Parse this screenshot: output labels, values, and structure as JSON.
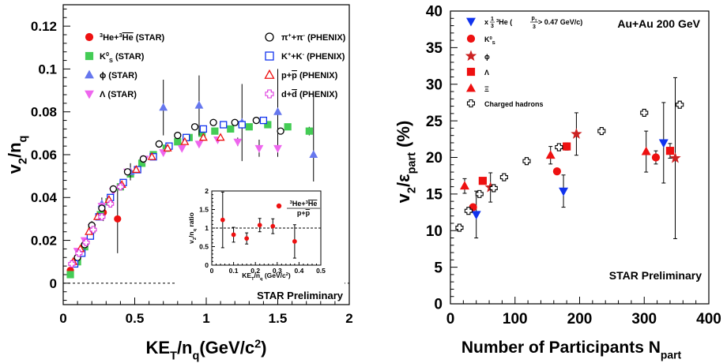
{
  "chart_data": [
    {
      "type": "scatter",
      "xlabel": "KE_T/n_q (GeV/c^2)",
      "xlabel_main": "KE",
      "xlabel_sub": "T",
      "xlabel_rest": "/n",
      "xlabel_sub2": "q",
      "xlabel_unit": "(GeV/c",
      "xlabel_sup": "2",
      "xlabel_close": ")",
      "ylabel": "v_2/n_q",
      "ylabel_main": "v",
      "ylabel_sub": "2",
      "ylabel_rest": "/n",
      "ylabel_sub2": "q",
      "xlim": [
        0,
        2
      ],
      "ylim": [
        -0.01,
        0.13
      ],
      "x_ticks": [
        "0",
        "0.5",
        "1",
        "1.5",
        "2"
      ],
      "y_ticks": [
        "0",
        "0.02",
        "0.04",
        "0.06",
        "0.08",
        "0.1",
        "0.12"
      ],
      "annotation": "STAR Preliminary",
      "legend_placement": "top",
      "series": [
        {
          "name": "3He+3He (STAR)",
          "label_main": "He+",
          "label_pre": "3",
          "label_pre2": "3",
          "label_main2": "He",
          "label_suffix": " (STAR)",
          "color": "#ee1111",
          "marker": "circle",
          "points": [
            [
              0.05,
              0.006,
              0.002
            ],
            [
              0.1,
              0.012,
              0.002
            ],
            [
              0.15,
              0.018,
              0.003
            ],
            [
              0.2,
              0.026,
              0.003
            ],
            [
              0.28,
              0.033,
              0.004
            ],
            [
              0.38,
              0.03,
              0.016
            ]
          ]
        },
        {
          "name": "K0S (STAR)",
          "label": "K",
          "label_sub": "S",
          "label_sup": "0",
          "label_suffix": " (STAR)",
          "color": "#44cc55",
          "marker": "square",
          "points": [
            [
              0.05,
              0.004,
              0
            ],
            [
              0.1,
              0.01,
              0
            ],
            [
              0.15,
              0.017,
              0
            ],
            [
              0.2,
              0.025,
              0
            ],
            [
              0.26,
              0.032,
              0
            ],
            [
              0.32,
              0.038,
              0
            ],
            [
              0.4,
              0.045,
              0
            ],
            [
              0.47,
              0.051,
              0
            ],
            [
              0.55,
              0.056,
              0
            ],
            [
              0.63,
              0.06,
              0
            ],
            [
              0.72,
              0.063,
              0
            ],
            [
              0.8,
              0.066,
              0
            ],
            [
              0.88,
              0.068,
              0
            ],
            [
              0.97,
              0.07,
              0
            ],
            [
              1.06,
              0.071,
              0
            ],
            [
              1.17,
              0.072,
              0
            ],
            [
              1.3,
              0.073,
              0
            ],
            [
              1.43,
              0.074,
              0
            ],
            [
              1.57,
              0.073,
              0
            ],
            [
              1.72,
              0.071,
              0.002
            ]
          ]
        },
        {
          "name": "phi (STAR)",
          "label": "ϕ",
          "label_suffix": " (STAR)",
          "color": "#6677ee",
          "marker": "triangle-up",
          "points": [
            [
              0.27,
              0.037,
              0.003
            ],
            [
              0.47,
              0.052,
              0.004
            ],
            [
              0.7,
              0.082,
              0.013
            ],
            [
              0.95,
              0.083,
              0.014
            ],
            [
              1.25,
              0.075,
              0.018
            ],
            [
              1.5,
              0.08,
              0.02
            ],
            [
              1.75,
              0.06,
              0.028
            ]
          ]
        },
        {
          "name": "Lambda (STAR)",
          "label": "Λ",
          "label_suffix": " (STAR)",
          "color": "#ee66ee",
          "marker": "triangle-down",
          "points": [
            [
              0.1,
              0.015,
              0
            ],
            [
              0.15,
              0.02,
              0
            ],
            [
              0.2,
              0.026,
              0
            ],
            [
              0.27,
              0.036,
              0
            ],
            [
              0.35,
              0.043,
              0
            ],
            [
              0.45,
              0.052,
              0
            ],
            [
              0.57,
              0.058,
              0
            ],
            [
              0.7,
              0.061,
              0
            ],
            [
              0.83,
              0.063,
              0
            ],
            [
              0.95,
              0.065,
              0
            ],
            [
              1.08,
              0.067,
              0
            ],
            [
              1.22,
              0.066,
              0.002
            ],
            [
              1.37,
              0.063,
              0.004
            ],
            [
              1.5,
              0.063,
              0.004
            ]
          ]
        },
        {
          "name": "pi+ + pi- (PHENIX)",
          "label": "π",
          "label_sup": "+",
          "label_mid": "+π",
          "label_sup2": "-",
          "label_suffix": " (PHENIX)",
          "color": "#000000",
          "marker": "open-circle",
          "points": [
            [
              0.1,
              0.012,
              0
            ],
            [
              0.15,
              0.018,
              0
            ],
            [
              0.2,
              0.027,
              0
            ],
            [
              0.27,
              0.035,
              0
            ],
            [
              0.35,
              0.044,
              0
            ],
            [
              0.45,
              0.052,
              0
            ],
            [
              0.56,
              0.058,
              0
            ],
            [
              0.67,
              0.065,
              0
            ],
            [
              0.8,
              0.069,
              0
            ],
            [
              0.92,
              0.073,
              0
            ],
            [
              1.05,
              0.075,
              0
            ],
            [
              1.2,
              0.075,
              0
            ],
            [
              1.35,
              0.076,
              0
            ],
            [
              1.52,
              0.071,
              0.001
            ]
          ]
        },
        {
          "name": "K+ + K- (PHENIX)",
          "label": "K",
          "label_sup": "+",
          "label_mid": "+K",
          "label_sup2": "-",
          "label_suffix": " (PHENIX)",
          "color": "#1133ee",
          "marker": "open-square",
          "points": [
            [
              0.08,
              0.009,
              0
            ],
            [
              0.13,
              0.014,
              0
            ],
            [
              0.19,
              0.022,
              0
            ],
            [
              0.25,
              0.031,
              0
            ],
            [
              0.33,
              0.04,
              0
            ],
            [
              0.42,
              0.047,
              0
            ],
            [
              0.52,
              0.053,
              0
            ],
            [
              0.63,
              0.059,
              0
            ],
            [
              0.74,
              0.064,
              0
            ],
            [
              0.86,
              0.068,
              0
            ],
            [
              0.98,
              0.072,
              0
            ],
            [
              1.12,
              0.074,
              0
            ],
            [
              1.25,
              0.074,
              0
            ],
            [
              1.4,
              0.076,
              0
            ]
          ]
        },
        {
          "name": "p+pbar (PHENIX)",
          "label": "p+",
          "label_bar": "p",
          "label_suffix": " (PHENIX)",
          "color": "#ee1111",
          "marker": "open-triangle",
          "points": [
            [
              0.07,
              0.01,
              0
            ],
            [
              0.12,
              0.016,
              0
            ],
            [
              0.18,
              0.024,
              0
            ],
            [
              0.24,
              0.031,
              0
            ],
            [
              0.32,
              0.039,
              0
            ],
            [
              0.41,
              0.046,
              0
            ],
            [
              0.51,
              0.053,
              0
            ],
            [
              0.62,
              0.059,
              0
            ],
            [
              0.73,
              0.063,
              0
            ],
            [
              0.85,
              0.066,
              0
            ],
            [
              0.98,
              0.068,
              0
            ],
            [
              1.1,
              0.068,
              0
            ]
          ]
        },
        {
          "name": "d+dbar (PHENIX)",
          "label": "d+",
          "label_bar": "d",
          "label_suffix": " (PHENIX)",
          "color": "#dd33dd",
          "marker": "open-cross",
          "points": [
            [
              0.06,
              0.009,
              0
            ],
            [
              0.11,
              0.014,
              0
            ],
            [
              0.16,
              0.019,
              0
            ],
            [
              0.21,
              0.025,
              0
            ],
            [
              0.27,
              0.031,
              0
            ],
            [
              0.33,
              0.037,
              0
            ],
            [
              0.4,
              0.045,
              0
            ]
          ]
        }
      ],
      "inset": {
        "xlabel_main": "KE",
        "xlabel_sub": "T",
        "xlabel_rest": "/n",
        "xlabel_sub2": "q",
        "xlabel_unit": " (GeV/c",
        "xlabel_sup": "2",
        "xlabel_close": ")",
        "ylabel": "v_2/n_q ratio",
        "ylabel_main": "v",
        "ylabel_sub": "2",
        "ylabel_rest": "/n",
        "ylabel_sub2": "q",
        "ylabel_suffix": " ratio",
        "xlim": [
          0,
          0.5
        ],
        "ylim": [
          0,
          2
        ],
        "x_ticks": [
          "0",
          "0.1",
          "0.2",
          "0.3",
          "0.4",
          "0.5"
        ],
        "y_ticks": [
          "0",
          "0.5",
          "1",
          "1.5",
          "2"
        ],
        "reference_line": 1,
        "legend_num": "3He+3He",
        "legend_den": "p+p",
        "legend_num_pre": "3",
        "legend_num_main": "He+",
        "legend_num_pre2": "3",
        "legend_num_main2": "He",
        "legend_den_main": "p+",
        "legend_den_bar": "p",
        "color": "#ee1111",
        "points": [
          [
            0.05,
            1.22,
            0.75
          ],
          [
            0.1,
            0.82,
            0.2
          ],
          [
            0.16,
            0.72,
            0.15
          ],
          [
            0.22,
            1.08,
            0.18
          ],
          [
            0.28,
            1.05,
            0.2
          ],
          [
            0.38,
            0.64,
            0.45
          ]
        ]
      }
    },
    {
      "type": "scatter",
      "xlabel": "Number of Participants N_part",
      "xlabel_main": "Number of Participants N",
      "xlabel_sub": "part",
      "ylabel": "v_2/epsilon_part (%)",
      "ylabel_main": "v",
      "ylabel_sub": "2",
      "ylabel_rest": "/ε",
      "ylabel_sub2": "part",
      "ylabel_unit": " (%)",
      "xlim": [
        0,
        400
      ],
      "ylim": [
        0,
        40
      ],
      "x_ticks": [
        "0",
        "100",
        "200",
        "300",
        "400"
      ],
      "y_ticks": [
        "0",
        "5",
        "10",
        "15",
        "20",
        "25",
        "30",
        "35",
        "40"
      ],
      "title_annotation": "Au+Au 200 GeV",
      "annotation": "STAR Preliminary",
      "legend_placement": "top-left",
      "series": [
        {
          "name": "x 1/3 3He (pT/3 > 0.47 GeV/c)",
          "label_x": "x",
          "label_frac_num": "1",
          "label_frac_den": "3",
          "label_pre": "3",
          "label_main": "He (",
          "label_frac2_num": "p",
          "label_frac2_num_sub": "T",
          "label_frac2_den": "3",
          "label_end": " > 0.47 GeV/c)",
          "color": "#1133ee",
          "marker": "triangle-down",
          "points": [
            [
              40,
              12.2,
              3.2
            ],
            [
              175,
              15.4,
              2.2
            ],
            [
              330,
              22.0,
              5.5
            ]
          ]
        },
        {
          "name": "K0S",
          "label": "K",
          "label_sub": "S",
          "label_sup": "0",
          "color": "#ee1111",
          "marker": "circle",
          "points": [
            [
              35,
              13.2,
              0
            ],
            [
              165,
              18.1,
              0
            ],
            [
              318,
              20.0,
              0.9
            ]
          ]
        },
        {
          "name": "phi",
          "label": "ϕ",
          "color": "#cc2222",
          "marker": "star",
          "points": [
            [
              62,
              15.9,
              2.0
            ],
            [
              195,
              23.2,
              2.9
            ],
            [
              348,
              19.9,
              11.0
            ]
          ]
        },
        {
          "name": "Lambda",
          "label": "Λ",
          "color": "#ee1111",
          "marker": "square",
          "points": [
            [
              50,
              16.8,
              0.4
            ],
            [
              180,
              21.5,
              0.5
            ],
            [
              340,
              20.9,
              1.0
            ]
          ]
        },
        {
          "name": "Xi",
          "label": "Ξ",
          "color": "#ee1111",
          "marker": "triangle-up",
          "points": [
            [
              22,
              16.1,
              1.0
            ],
            [
              155,
              20.3,
              1.2
            ],
            [
              303,
              20.8,
              2.8
            ]
          ]
        },
        {
          "name": "Charged hadrons",
          "label": "Charged hadrons",
          "color": "#000000",
          "marker": "open-cross",
          "points": [
            [
              14,
              10.4,
              0
            ],
            [
              28,
              12.7,
              0
            ],
            [
              45,
              15.0,
              0
            ],
            [
              67,
              15.8,
              0
            ],
            [
              83,
              17.3,
              0
            ],
            [
              118,
              19.5,
              0
            ],
            [
              168,
              21.4,
              0
            ],
            [
              234,
              23.6,
              0
            ],
            [
              300,
              26.1,
              0
            ],
            [
              355,
              27.2,
              0
            ]
          ]
        }
      ]
    }
  ]
}
